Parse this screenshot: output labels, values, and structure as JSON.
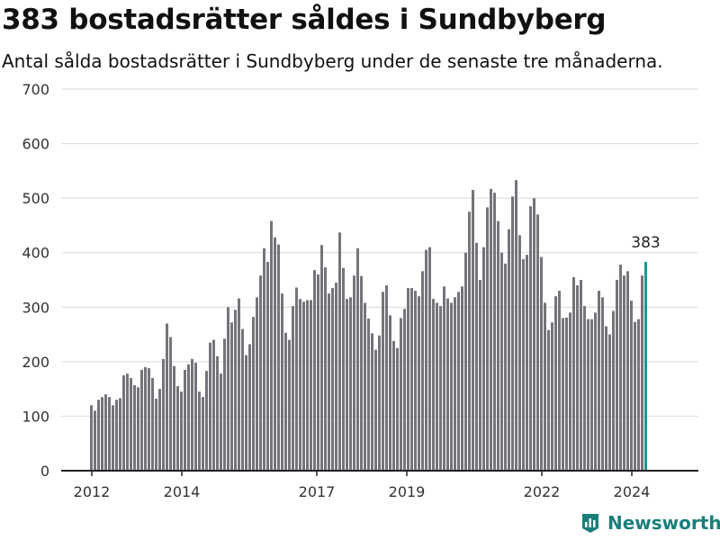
{
  "title": "383 bostadsrätter såldes i Sundbyberg",
  "subtitle": "Antal sålda bostadsrätter i Sundbyberg under de senaste tre månaderna.",
  "brand": "Newsworthy",
  "colors": {
    "bar": "#76737a",
    "highlight": "#159a8f",
    "grid": "#d9d9d9",
    "axis": "#222222",
    "brand": "#1a7f7a"
  },
  "chart_data": {
    "type": "bar",
    "title": "383 bostadsrätter såldes i Sundbyberg",
    "subtitle": "Antal sålda bostadsrätter i Sundbyberg under de senaste tre månaderna.",
    "ylim": [
      0,
      700
    ],
    "yticks": [
      0,
      100,
      200,
      300,
      400,
      500,
      600,
      700
    ],
    "xticks": [
      "2012",
      "2014",
      "2017",
      "2019",
      "2022",
      "2024"
    ],
    "grid": true,
    "highlight_label": "383",
    "series": [
      {
        "values": [
          120,
          110,
          130,
          135,
          140,
          135,
          120,
          130,
          133,
          175,
          178,
          170,
          157,
          153,
          185,
          190,
          188,
          170,
          132,
          150,
          205,
          270,
          245,
          192,
          155,
          145,
          185,
          195,
          205,
          198,
          145,
          135,
          183,
          235,
          240,
          210,
          178,
          242,
          300,
          272,
          295,
          316,
          260,
          212,
          232,
          282,
          318,
          358,
          408,
          383,
          458,
          428,
          415,
          325,
          253,
          240,
          302,
          336,
          315,
          310,
          313,
          313,
          368,
          360,
          414,
          373,
          325,
          335,
          345,
          437,
          372,
          315,
          318,
          358,
          408,
          357,
          308,
          279,
          252,
          222,
          248,
          328,
          340,
          285,
          238,
          225,
          280,
          297,
          335,
          335,
          330,
          320,
          366,
          405,
          410,
          315,
          308,
          302,
          338,
          316,
          308,
          318,
          328,
          338,
          400,
          475,
          515,
          418,
          350,
          410,
          483,
          517,
          510,
          458,
          400,
          380,
          443,
          503,
          533,
          432,
          388,
          396,
          485,
          500,
          470,
          392,
          308,
          258,
          272,
          320,
          330,
          280,
          281,
          290,
          355,
          340,
          350,
          302,
          278,
          278,
          290,
          330,
          318,
          265,
          250,
          293,
          350,
          378,
          358,
          366,
          312,
          273,
          278,
          358,
          383
        ]
      }
    ]
  }
}
